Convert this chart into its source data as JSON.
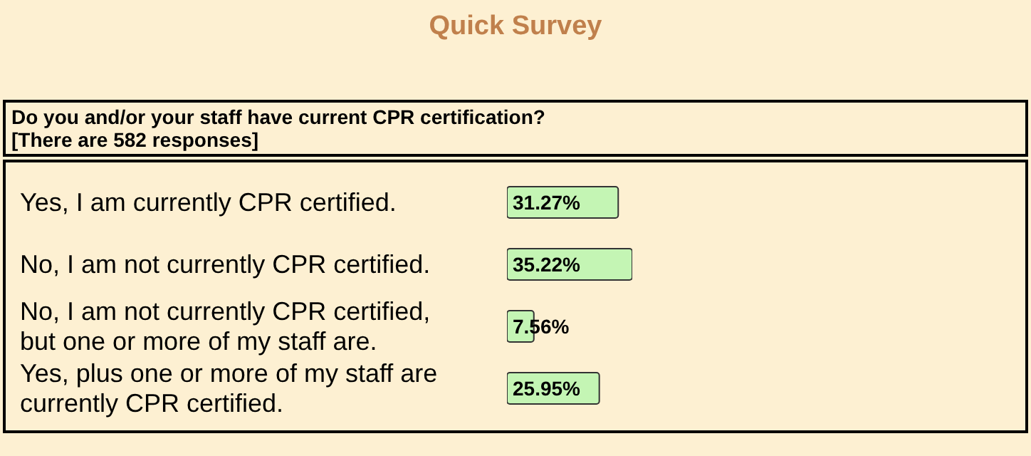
{
  "chart_data": {
    "type": "bar",
    "orientation": "horizontal",
    "title": "Quick Survey",
    "subtitle": "Do you and/or your staff have current CPR certification?",
    "annotations": [
      "[There are 582 responses]"
    ],
    "categories": [
      "Yes, I am currently CPR certified.",
      "No, I am not currently CPR certified.",
      "No, I am not currently CPR certified, but one or more of my staff are.",
      "Yes, plus one or more of my staff are currently CPR certified."
    ],
    "values": [
      31.27,
      35.22,
      7.56,
      25.95
    ],
    "value_labels": [
      "31.27%",
      "35.22%",
      "7.56%",
      "25.95%"
    ],
    "color": "#c4f5b4",
    "grid": false,
    "legend": false
  }
}
